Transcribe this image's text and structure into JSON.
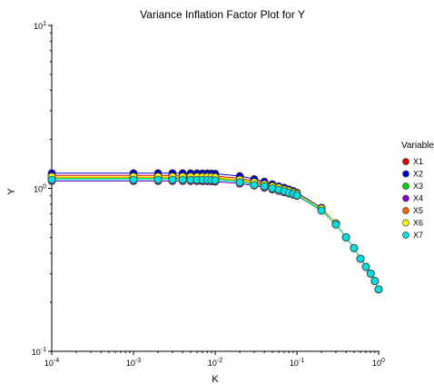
{
  "chart_data": {
    "type": "line",
    "title": "Variance Inflation Factor Plot for Y",
    "xlabel": "K",
    "ylabel": "Y",
    "xscale": "log",
    "yscale": "log",
    "xlim": [
      0.0001,
      1
    ],
    "ylim": [
      0.1,
      10
    ],
    "x_ticks": [
      {
        "base": "10",
        "exp": "-4"
      },
      {
        "base": "10",
        "exp": "-3"
      },
      {
        "base": "10",
        "exp": "-2"
      },
      {
        "base": "10",
        "exp": "-1"
      },
      {
        "base": "10",
        "exp": "0"
      }
    ],
    "y_ticks": [
      {
        "base": "10",
        "exp": "-1"
      },
      {
        "base": "10",
        "exp": "0"
      },
      {
        "base": "10",
        "exp": "1"
      }
    ],
    "grid": false,
    "legend_title": "Variable",
    "legend_position": "right",
    "x": [
      0.0001,
      0.001,
      0.002,
      0.003,
      0.004,
      0.005,
      0.006,
      0.007,
      0.008,
      0.009,
      0.01,
      0.02,
      0.03,
      0.04,
      0.05,
      0.06,
      0.07,
      0.08,
      0.09,
      0.1,
      0.2,
      0.3,
      0.4,
      0.5,
      0.6,
      0.7,
      0.8,
      0.9,
      1.0
    ],
    "series": [
      {
        "name": "X1",
        "color": "#e00000",
        "values": [
          1.2,
          1.2,
          1.2,
          1.2,
          1.2,
          1.199,
          1.198,
          1.197,
          1.196,
          1.195,
          1.19,
          1.15,
          1.11,
          1.07,
          1.04,
          1.01,
          0.99,
          0.965,
          0.945,
          0.92,
          0.76,
          0.61,
          0.5,
          0.43,
          0.37,
          0.33,
          0.3,
          0.27,
          0.24
        ]
      },
      {
        "name": "X2",
        "color": "#0000c8",
        "values": [
          1.24,
          1.24,
          1.24,
          1.24,
          1.239,
          1.238,
          1.237,
          1.236,
          1.235,
          1.234,
          1.23,
          1.19,
          1.14,
          1.1,
          1.06,
          1.03,
          1.01,
          0.985,
          0.965,
          0.94,
          0.76,
          0.61,
          0.5,
          0.43,
          0.37,
          0.33,
          0.3,
          0.27,
          0.24
        ]
      },
      {
        "name": "X3",
        "color": "#00d000",
        "values": [
          1.15,
          1.15,
          1.15,
          1.15,
          1.15,
          1.149,
          1.148,
          1.147,
          1.146,
          1.145,
          1.14,
          1.11,
          1.07,
          1.04,
          1.01,
          0.99,
          0.97,
          0.95,
          0.93,
          0.91,
          0.74,
          0.6,
          0.5,
          0.43,
          0.37,
          0.33,
          0.3,
          0.27,
          0.24
        ]
      },
      {
        "name": "X4",
        "color": "#8000c8",
        "values": [
          1.11,
          1.11,
          1.11,
          1.11,
          1.11,
          1.109,
          1.108,
          1.107,
          1.106,
          1.105,
          1.1,
          1.07,
          1.04,
          1.01,
          0.985,
          0.965,
          0.945,
          0.93,
          0.915,
          0.9,
          0.73,
          0.6,
          0.5,
          0.43,
          0.37,
          0.33,
          0.3,
          0.27,
          0.24
        ]
      },
      {
        "name": "X5",
        "color": "#ff6600",
        "values": [
          1.17,
          1.17,
          1.17,
          1.17,
          1.17,
          1.169,
          1.168,
          1.167,
          1.166,
          1.165,
          1.16,
          1.12,
          1.08,
          1.05,
          1.02,
          1.0,
          0.98,
          0.96,
          0.94,
          0.92,
          0.75,
          0.61,
          0.5,
          0.43,
          0.37,
          0.33,
          0.3,
          0.27,
          0.24
        ]
      },
      {
        "name": "X6",
        "color": "#ffff00",
        "values": [
          1.18,
          1.18,
          1.18,
          1.18,
          1.18,
          1.179,
          1.178,
          1.177,
          1.176,
          1.175,
          1.17,
          1.13,
          1.09,
          1.06,
          1.03,
          1.01,
          0.985,
          0.965,
          0.945,
          0.925,
          0.75,
          0.61,
          0.5,
          0.43,
          0.37,
          0.33,
          0.3,
          0.27,
          0.24
        ]
      },
      {
        "name": "X7",
        "color": "#00e0e0",
        "values": [
          1.13,
          1.13,
          1.13,
          1.13,
          1.13,
          1.129,
          1.128,
          1.127,
          1.126,
          1.125,
          1.12,
          1.09,
          1.05,
          1.03,
          1.0,
          0.98,
          0.96,
          0.94,
          0.925,
          0.905,
          0.73,
          0.6,
          0.5,
          0.43,
          0.37,
          0.33,
          0.3,
          0.27,
          0.24
        ]
      }
    ]
  }
}
